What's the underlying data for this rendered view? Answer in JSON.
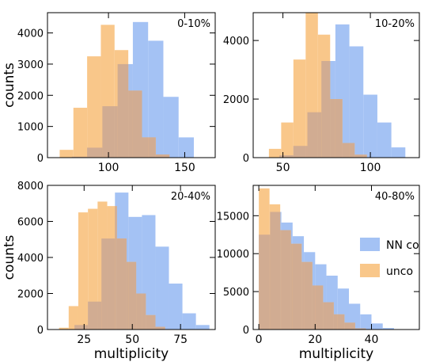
{
  "colors": {
    "nn_co": "#a4c2f4",
    "unco": "#f9c78a",
    "overlap": "#d1ac92"
  },
  "chart_data": [
    {
      "type": "bar",
      "title": "",
      "annotation": "0-10%",
      "xlabel": "",
      "ylabel": "counts",
      "xlim": [
        60,
        170
      ],
      "ylim": [
        0,
        4650
      ],
      "xticks": [
        100,
        150
      ],
      "yticks": [
        0,
        1000,
        2000,
        3000,
        4000
      ],
      "series": [
        {
          "name": "NN co",
          "edges": [
            76,
            86,
            96,
            106,
            116,
            126,
            136,
            146,
            156
          ],
          "values": [
            30,
            320,
            1650,
            3000,
            4350,
            3750,
            1950,
            650,
            80
          ]
        },
        {
          "name": "unco",
          "edges": [
            68,
            77,
            86,
            95,
            104,
            113,
            122,
            131,
            140,
            149
          ],
          "values": [
            250,
            1600,
            3250,
            4260,
            3450,
            2150,
            650,
            100,
            10
          ]
        }
      ]
    },
    {
      "type": "bar",
      "title": "",
      "annotation": "10-20%",
      "xlabel": "",
      "ylabel": "",
      "xlim": [
        33,
        128
      ],
      "ylim": [
        0,
        4950
      ],
      "xticks": [
        50,
        100
      ],
      "yticks": [
        0,
        2000,
        4000
      ],
      "series": [
        {
          "name": "NN co",
          "edges": [
            48,
            56,
            64,
            72,
            80,
            88,
            96,
            104,
            112,
            120
          ],
          "values": [
            80,
            400,
            1550,
            3300,
            4550,
            3800,
            2150,
            1200,
            350,
            50
          ]
        },
        {
          "name": "unco",
          "edges": [
            42,
            49,
            56,
            63,
            70,
            77,
            84,
            91,
            98
          ],
          "values": [
            300,
            1200,
            3350,
            4950,
            4200,
            2000,
            500,
            100
          ]
        }
      ]
    },
    {
      "type": "bar",
      "title": "",
      "annotation": "20-40%",
      "xlabel": "multiplicity",
      "ylabel": "counts",
      "xlim": [
        6,
        93
      ],
      "ylim": [
        0,
        8000
      ],
      "xticks": [
        25,
        50,
        75
      ],
      "yticks": [
        0,
        2000,
        4000,
        6000,
        8000
      ],
      "series": [
        {
          "name": "NN co",
          "edges": [
            20,
            27,
            34,
            41,
            48,
            55,
            62,
            69,
            76,
            83,
            90
          ],
          "values": [
            250,
            1550,
            5050,
            7600,
            6250,
            6350,
            4600,
            2550,
            900,
            250
          ]
        },
        {
          "name": "unco",
          "edges": [
            12,
            17,
            22,
            27,
            32,
            37,
            42,
            47,
            52,
            57,
            62,
            67
          ],
          "values": [
            100,
            1300,
            6500,
            6700,
            7100,
            6850,
            5050,
            3750,
            2000,
            800,
            150
          ]
        }
      ]
    },
    {
      "type": "bar",
      "title": "",
      "annotation": "40-80%",
      "xlabel": "multiplicity",
      "ylabel": "",
      "xlim": [
        -2,
        57
      ],
      "ylim": [
        0,
        19000
      ],
      "xticks": [
        0,
        20,
        40
      ],
      "yticks": [
        0,
        5000,
        10000,
        15000
      ],
      "legend_position": "center-right",
      "series": [
        {
          "name": "NN co",
          "edges": [
            0,
            4,
            8,
            12,
            16,
            20,
            24,
            28,
            32,
            36,
            40,
            44,
            48,
            52
          ],
          "values": [
            12500,
            15500,
            14100,
            12300,
            10200,
            8600,
            7100,
            5400,
            3400,
            2000,
            800,
            200,
            50
          ]
        },
        {
          "name": "unco",
          "edges": [
            0,
            3.8,
            7.6,
            11.4,
            15.2,
            19,
            22.8,
            26.6,
            30.4,
            34.2,
            38
          ],
          "values": [
            18600,
            16500,
            13100,
            11300,
            8900,
            5800,
            3600,
            2000,
            900,
            150
          ]
        }
      ]
    }
  ],
  "legend": {
    "items": [
      {
        "label": "NN co",
        "color": "#a4c2f4"
      },
      {
        "label": "unco",
        "color": "#f9c78a"
      }
    ]
  }
}
